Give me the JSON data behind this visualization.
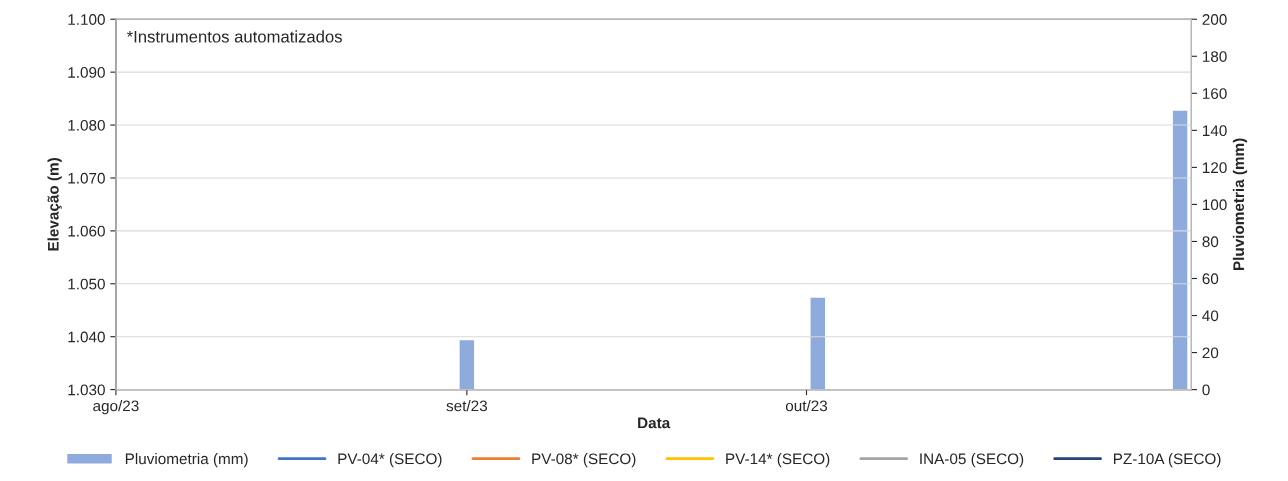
{
  "chart_data": {
    "type": "line",
    "xlabel": "Data",
    "ylabel": "Elevação (m)",
    "y2label": "Pluviometria (mm)",
    "x": [
      "2023-09-01",
      "2023-10-02",
      "2023-11-03"
    ],
    "series": [
      {
        "name": "Pluviometria (mm)",
        "type": "bar",
        "axis": "y2",
        "color": "#8faadc",
        "values": [
          27,
          50,
          151
        ]
      },
      {
        "name": "PV-04* (SECO)",
        "color": "#4472c4",
        "values": [
          null,
          null,
          null
        ]
      },
      {
        "name": "PV-08* (SECO)",
        "color": "#ed7d31",
        "values": [
          null,
          null,
          null
        ]
      },
      {
        "name": "PV-14* (SECO)",
        "color": "#ffc000",
        "values": [
          null,
          null,
          null
        ]
      },
      {
        "name": "INA-05 (SECO)",
        "color": "#a5a5a5",
        "values": [
          null,
          null,
          null
        ]
      },
      {
        "name": "PZ-10A (SECO)",
        "color": "#264478",
        "values": [
          null,
          null,
          null
        ]
      }
    ],
    "xlim": [
      "2023-08-01",
      "2023-11-04"
    ],
    "xticks": [
      {
        "value": "2023-08-01",
        "label": "ago/23"
      },
      {
        "value": "2023-09-01",
        "label": "set/23"
      },
      {
        "value": "2023-10-01",
        "label": "out/23"
      }
    ],
    "ylim": [
      1030,
      1100
    ],
    "yticks": [
      {
        "value": 1030,
        "label": "1.030"
      },
      {
        "value": 1040,
        "label": "1.040"
      },
      {
        "value": 1050,
        "label": "1.050"
      },
      {
        "value": 1060,
        "label": "1.060"
      },
      {
        "value": 1070,
        "label": "1.070"
      },
      {
        "value": 1080,
        "label": "1.080"
      },
      {
        "value": 1090,
        "label": "1.090"
      },
      {
        "value": 1100,
        "label": "1.100"
      }
    ],
    "y2lim": [
      0,
      200
    ],
    "y2ticks": [
      0,
      20,
      40,
      60,
      80,
      100,
      120,
      140,
      160,
      180,
      200
    ],
    "grid": "y",
    "legend": "bottom",
    "line_style": "solid",
    "marker": "none",
    "annotations": [
      "*Instrumentos automatizados"
    ]
  }
}
